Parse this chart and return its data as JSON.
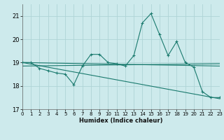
{
  "background_color": "#cdeaec",
  "grid_color": "#aed4d6",
  "line_color": "#1a7a6e",
  "xlim": [
    0,
    23
  ],
  "ylim": [
    17,
    21.5
  ],
  "yticks": [
    17,
    18,
    19,
    20,
    21
  ],
  "xticks": [
    0,
    1,
    2,
    3,
    4,
    5,
    6,
    7,
    8,
    9,
    10,
    11,
    12,
    13,
    14,
    15,
    16,
    17,
    18,
    19,
    20,
    21,
    22,
    23
  ],
  "xlabel": "Humidex (Indice chaleur)",
  "main_series": {
    "x": [
      0,
      1,
      2,
      3,
      4,
      5,
      6,
      7,
      8,
      9,
      10,
      11,
      12,
      13,
      14,
      15,
      16,
      17,
      18,
      19,
      20,
      21,
      22,
      23
    ],
    "y": [
      19.0,
      19.0,
      18.75,
      18.65,
      18.55,
      18.5,
      18.05,
      18.85,
      19.35,
      19.35,
      19.0,
      18.95,
      18.85,
      19.3,
      20.7,
      21.1,
      20.2,
      19.3,
      19.9,
      19.0,
      18.8,
      17.75,
      17.5,
      17.5
    ]
  },
  "trend_lines": [
    {
      "x": [
        0,
        23
      ],
      "y": [
        19.0,
        18.85
      ]
    },
    {
      "x": [
        0,
        23
      ],
      "y": [
        18.85,
        18.95
      ]
    },
    {
      "x": [
        0,
        23
      ],
      "y": [
        19.0,
        17.45
      ]
    }
  ]
}
